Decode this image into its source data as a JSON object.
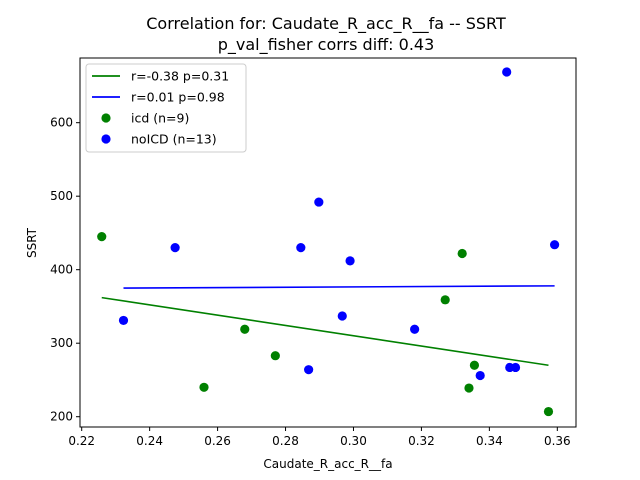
{
  "chart_data": {
    "type": "scatter",
    "title": "Correlation for: Caudate_R_acc_R__fa -- SSRT",
    "subtitle": "p_val_fisher corrs diff: 0.43",
    "xlabel": "Caudate_R_acc_R__fa",
    "ylabel": "SSRT",
    "xlim": [
      0.2195,
      0.3655
    ],
    "ylim": [
      186,
      688
    ],
    "xticks": [
      0.22,
      0.24,
      0.26,
      0.28,
      0.3,
      0.32,
      0.34,
      0.36
    ],
    "xtick_labels": [
      "0.22",
      "0.24",
      "0.26",
      "0.28",
      "0.30",
      "0.32",
      "0.34",
      "0.36"
    ],
    "yticks": [
      200,
      300,
      400,
      500,
      600
    ],
    "ytick_labels": [
      "200",
      "300",
      "400",
      "500",
      "600"
    ],
    "grid": false,
    "legend_position": "top-left",
    "series": [
      {
        "name": "icd (n=9)",
        "kind": "scatter",
        "color": "#008000",
        "x": [
          0.2259,
          0.256,
          0.268,
          0.277,
          0.327,
          0.332,
          0.334,
          0.3356,
          0.3574
        ],
        "y": [
          445,
          240,
          319,
          283,
          359,
          422,
          239,
          270,
          207
        ]
      },
      {
        "name": "noICD (n=13)",
        "kind": "scatter",
        "color": "#0000ff",
        "x": [
          0.2323,
          0.2475,
          0.2845,
          0.2868,
          0.2898,
          0.2967,
          0.299,
          0.318,
          0.3373,
          0.3451,
          0.346,
          0.3477,
          0.3592
        ],
        "y": [
          331,
          430,
          430,
          264,
          492,
          337,
          412,
          319,
          256,
          669,
          267,
          267,
          434
        ]
      },
      {
        "name": "r=-0.38 p=0.31",
        "kind": "line",
        "color": "#008000",
        "x": [
          0.2259,
          0.3574
        ],
        "y": [
          362,
          270
        ]
      },
      {
        "name": "r=0.01 p=0.98",
        "kind": "line",
        "color": "#0000ff",
        "x": [
          0.2323,
          0.3592
        ],
        "y": [
          375,
          378
        ]
      }
    ],
    "legend": [
      {
        "label": "r=-0.38 p=0.31",
        "marker": "line",
        "color": "#008000"
      },
      {
        "label": "r=0.01 p=0.98",
        "marker": "line",
        "color": "#0000ff"
      },
      {
        "label": "icd (n=9)",
        "marker": "dot",
        "color": "#008000"
      },
      {
        "label": "noICD (n=13)",
        "marker": "dot",
        "color": "#0000ff"
      }
    ]
  }
}
